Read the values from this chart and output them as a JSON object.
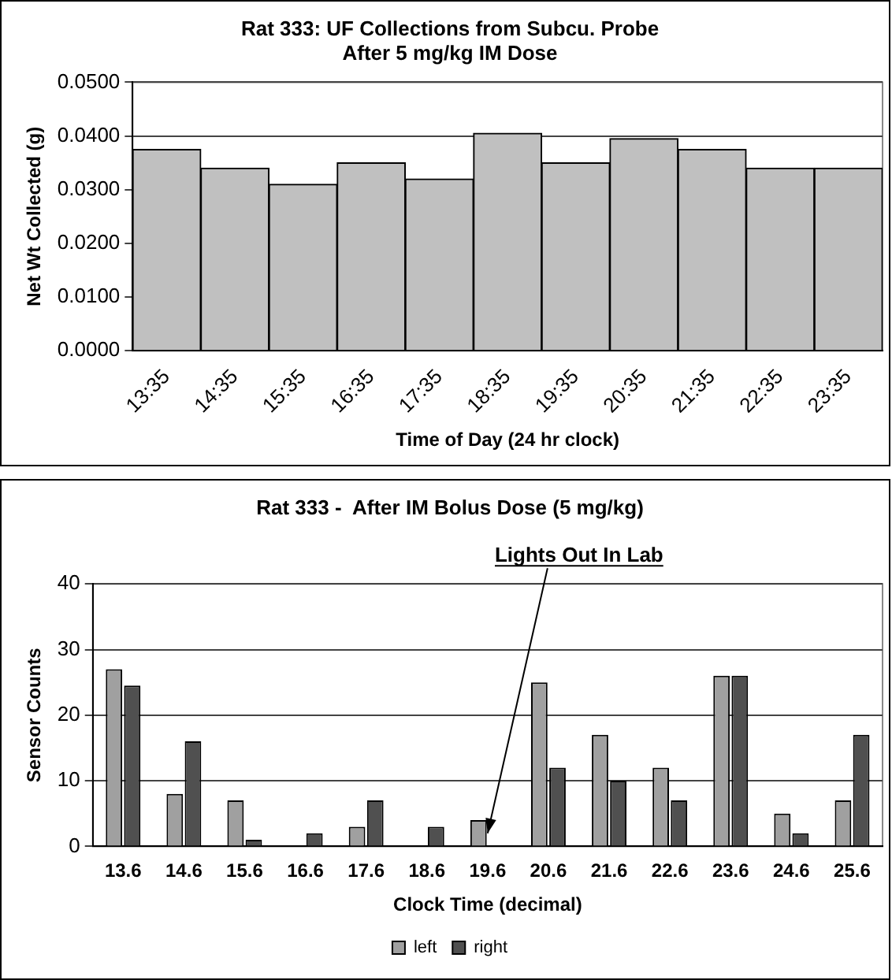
{
  "chart_data": [
    {
      "type": "bar",
      "title": "Rat 333: UF Collections from Subcu. Probe\nAfter 5 mg/kg IM Dose",
      "xlabel": "Time of Day (24 hr clock)",
      "ylabel": "Net Wt Collected (g)",
      "categories": [
        "13:35",
        "14:35",
        "15:35",
        "16:35",
        "17:35",
        "18:35",
        "19:35",
        "20:35",
        "21:35",
        "22:35",
        "23:35"
      ],
      "values": [
        0.0375,
        0.034,
        0.031,
        0.035,
        0.032,
        0.0405,
        0.035,
        0.0395,
        0.0375,
        0.034,
        0.034
      ],
      "color": "#c0c0c0",
      "ylim": [
        0,
        0.05
      ],
      "yticks": [
        {
          "value": 0,
          "label": "0.0000"
        },
        {
          "value": 0.01,
          "label": "0.0100"
        },
        {
          "value": 0.02,
          "label": "0.0200"
        },
        {
          "value": 0.03,
          "label": "0.0300"
        },
        {
          "value": 0.04,
          "label": "0.0400"
        },
        {
          "value": 0.05,
          "label": "0.0500"
        }
      ],
      "grid": "y",
      "legend": false
    },
    {
      "type": "bar",
      "title": "Rat 333 -  After IM Bolus Dose (5 mg/kg)",
      "xlabel": "Clock Time (decimal)",
      "ylabel": "Sensor Counts",
      "categories": [
        "13.6",
        "14.6",
        "15.6",
        "16.6",
        "17.6",
        "18.6",
        "19.6",
        "20.6",
        "21.6",
        "22.6",
        "23.6",
        "24.6",
        "25.6"
      ],
      "series": [
        {
          "name": "left",
          "color": "#a0a0a0",
          "values": [
            27,
            8,
            7,
            0,
            3,
            0,
            4,
            25,
            17,
            12,
            26,
            5,
            7
          ]
        },
        {
          "name": "right",
          "color": "#505050",
          "values": [
            24.5,
            16,
            1,
            2,
            7,
            3,
            0,
            12,
            10,
            7,
            26,
            2,
            17
          ]
        }
      ],
      "ylim": [
        0,
        40
      ],
      "yticks": [
        0,
        10,
        20,
        30,
        40
      ],
      "annotations": [
        {
          "text": "Lights Out In Lab",
          "x": "19.6",
          "y": 2
        }
      ],
      "grid": "y",
      "legend": "bottom"
    }
  ]
}
